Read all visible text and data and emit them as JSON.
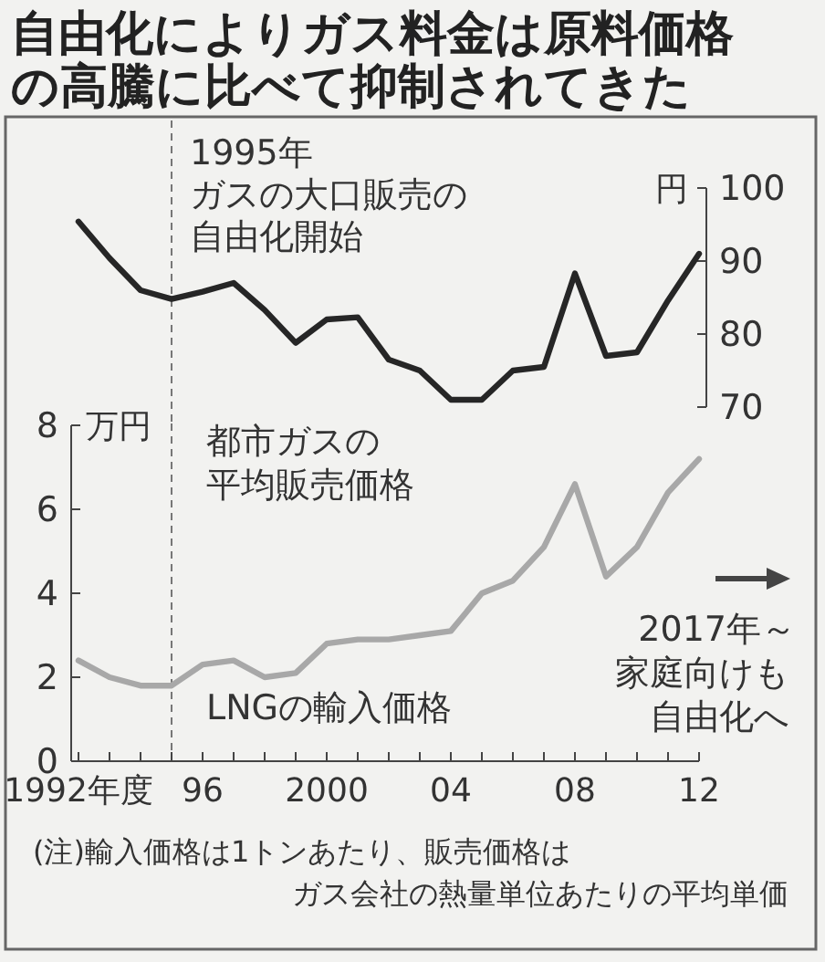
{
  "chart_data": [
    {
      "type": "line",
      "title": "自由化によりガス料金は原料価格の高騰に比べて抑制されてきた",
      "ylabel": "円",
      "xlim": [
        1992,
        2012
      ],
      "ylim": [
        70,
        100
      ],
      "yticks": [
        70,
        80,
        90,
        100
      ],
      "tick_labels": "y",
      "marker": "none",
      "line_style": "solid",
      "grid": false,
      "x": [
        1992,
        1993,
        1994,
        1995,
        1996,
        1997,
        1998,
        1999,
        2000,
        2001,
        2002,
        2003,
        2004,
        2005,
        2006,
        2007,
        2008,
        2009,
        2010,
        2011,
        2012
      ],
      "series": [
        {
          "name": "都市ガスの平均販売価格",
          "color": "#262626",
          "values": [
            95.4,
            90.4,
            86,
            84.8,
            85.8,
            87,
            83.3,
            78.8,
            82,
            82.3,
            76.5,
            75,
            71,
            71,
            75,
            75.5,
            88.3,
            77,
            77.5,
            84.6,
            91
          ]
        }
      ],
      "ref_lines": [
        {
          "axis": "x",
          "value": 1995,
          "label": "1995年ガスの大口販売の自由化開始",
          "line_style": "dashed",
          "color": "#777777"
        }
      ]
    },
    {
      "type": "line",
      "ylabel": "万円",
      "xlim": [
        1992,
        2012
      ],
      "ylim": [
        0,
        8
      ],
      "yticks": [
        0,
        2,
        4,
        6,
        8
      ],
      "xticks": [
        {
          "value": 1992,
          "label": "1992年度"
        },
        {
          "value": 1993,
          "label": null
        },
        {
          "value": 1994,
          "label": null
        },
        {
          "value": 1995,
          "label": null
        },
        {
          "value": 1996,
          "label": "96"
        },
        {
          "value": 1997,
          "label": null
        },
        {
          "value": 1998,
          "label": null
        },
        {
          "value": 1999,
          "label": null
        },
        {
          "value": 2000,
          "label": "2000"
        },
        {
          "value": 2001,
          "label": null
        },
        {
          "value": 2002,
          "label": null
        },
        {
          "value": 2003,
          "label": null
        },
        {
          "value": 2004,
          "label": "04"
        },
        {
          "value": 2005,
          "label": null
        },
        {
          "value": 2006,
          "label": null
        },
        {
          "value": 2007,
          "label": null
        },
        {
          "value": 2008,
          "label": "08"
        },
        {
          "value": 2009,
          "label": null
        },
        {
          "value": 2010,
          "label": null
        },
        {
          "value": 2011,
          "label": null
        },
        {
          "value": 2012,
          "label": "12"
        }
      ],
      "marker": "none",
      "line_style": "solid",
      "grid": false,
      "x": [
        1992,
        1993,
        1994,
        1995,
        1996,
        1997,
        1998,
        1999,
        2000,
        2001,
        2002,
        2003,
        2004,
        2005,
        2006,
        2007,
        2008,
        2009,
        2010,
        2011,
        2012
      ],
      "series": [
        {
          "name": "LNGの輸入価格",
          "color": "#a8a8a8",
          "values": [
            2.4,
            2.0,
            1.8,
            1.8,
            2.3,
            2.4,
            2.0,
            2.1,
            2.8,
            2.9,
            2.9,
            3.0,
            3.1,
            4.0,
            4.3,
            5.1,
            6.6,
            4.4,
            5.1,
            6.4,
            7.2
          ]
        }
      ],
      "ref_lines": [
        {
          "axis": "x",
          "value": 1995,
          "label": null,
          "line_style": "dashed",
          "color": "#777777"
        }
      ],
      "annotations": [
        "2017年～家庭向けも自由化へ",
        "(注)輸入価格は1トンあたり、販売価格はガス会社の熱量単位あたりの平均単価"
      ]
    }
  ]
}
